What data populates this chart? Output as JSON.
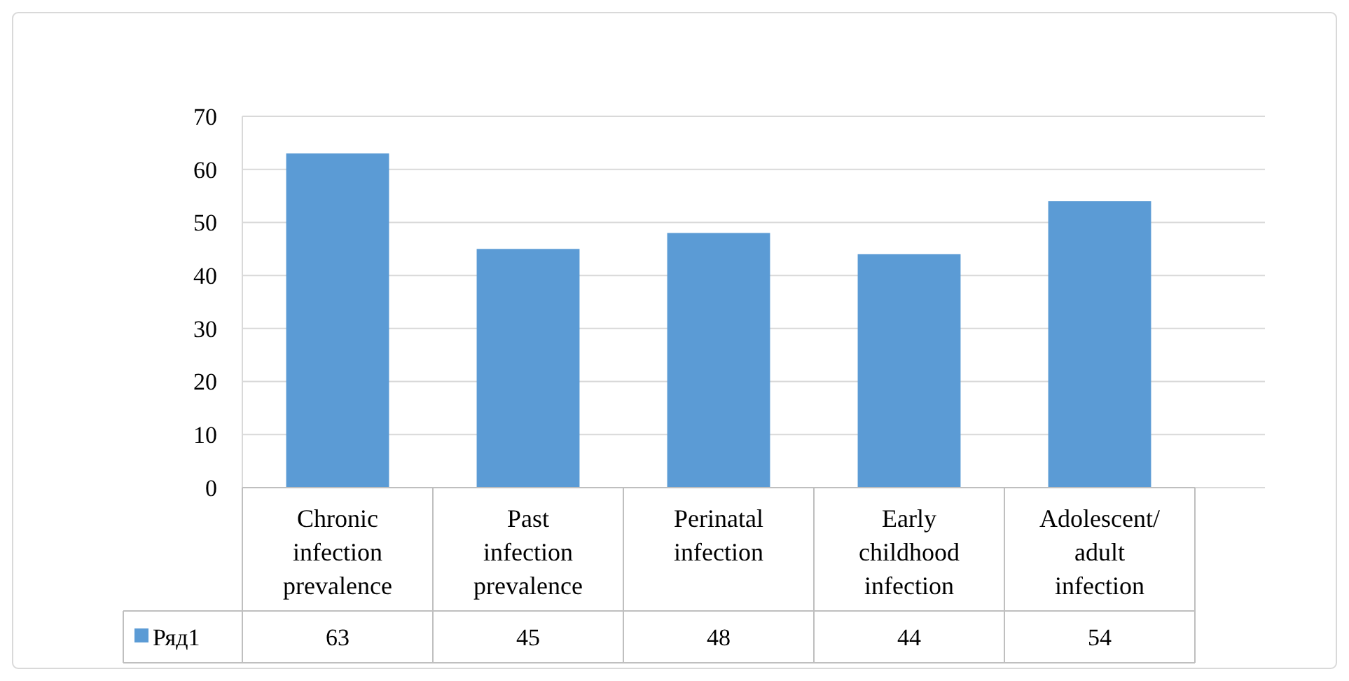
{
  "chart_data": {
    "type": "bar",
    "categories": [
      "Chronic infection prevalence",
      "Past infection prevalence",
      "Perinatal infection",
      "Early childhood infection",
      "Adolescent/ adult infection"
    ],
    "series": [
      {
        "name": "Ряд1",
        "color": "#5b9bd5",
        "values": [
          63,
          45,
          48,
          44,
          54
        ]
      }
    ],
    "ylim": [
      0,
      70
    ],
    "yticks": [
      0,
      10,
      20,
      30,
      40,
      50,
      60,
      70
    ],
    "grid": "y",
    "data_labels": true,
    "legend": "bottom"
  }
}
